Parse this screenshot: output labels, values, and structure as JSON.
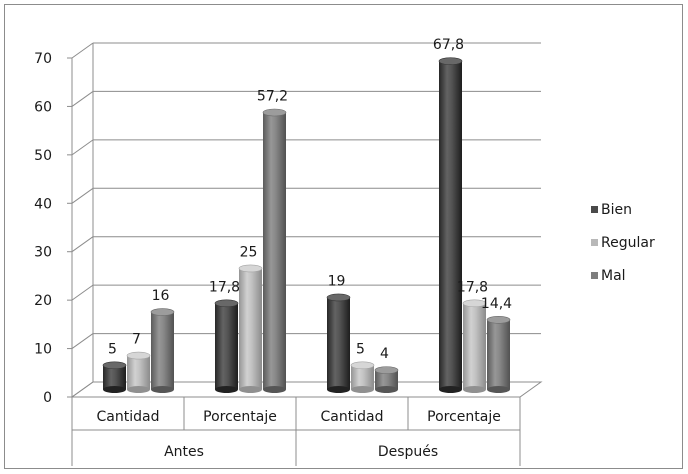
{
  "chart_data": {
    "type": "bar",
    "categories": [
      "Cantidad",
      "Porcentaje",
      "Cantidad",
      "Porcentaje"
    ],
    "groups": [
      {
        "label": "Antes",
        "categories": [
          "Cantidad",
          "Porcentaje"
        ]
      },
      {
        "label": "Después",
        "categories": [
          "Cantidad",
          "Porcentaje"
        ]
      }
    ],
    "series": [
      {
        "name": "Bien",
        "values": [
          5,
          17.8,
          19,
          67.8
        ],
        "labels": [
          "5",
          "17,8",
          "19",
          "67,8"
        ],
        "color": "#4a4a4a"
      },
      {
        "name": "Regular",
        "values": [
          7,
          25,
          5,
          17.8
        ],
        "labels": [
          "7",
          "25",
          "5",
          "17,8"
        ],
        "color": "#b8b8b8"
      },
      {
        "name": "Mal",
        "values": [
          16,
          57.2,
          4,
          14.4
        ],
        "labels": [
          "16",
          "57,2",
          "4",
          "14,4"
        ],
        "color": "#7e7e7e"
      }
    ],
    "ylim": [
      0,
      70
    ],
    "yticks": [
      "0",
      "10",
      "20",
      "30",
      "40",
      "50",
      "60",
      "70"
    ],
    "grid": true,
    "legend": "right",
    "style": "3d-cylinder"
  }
}
